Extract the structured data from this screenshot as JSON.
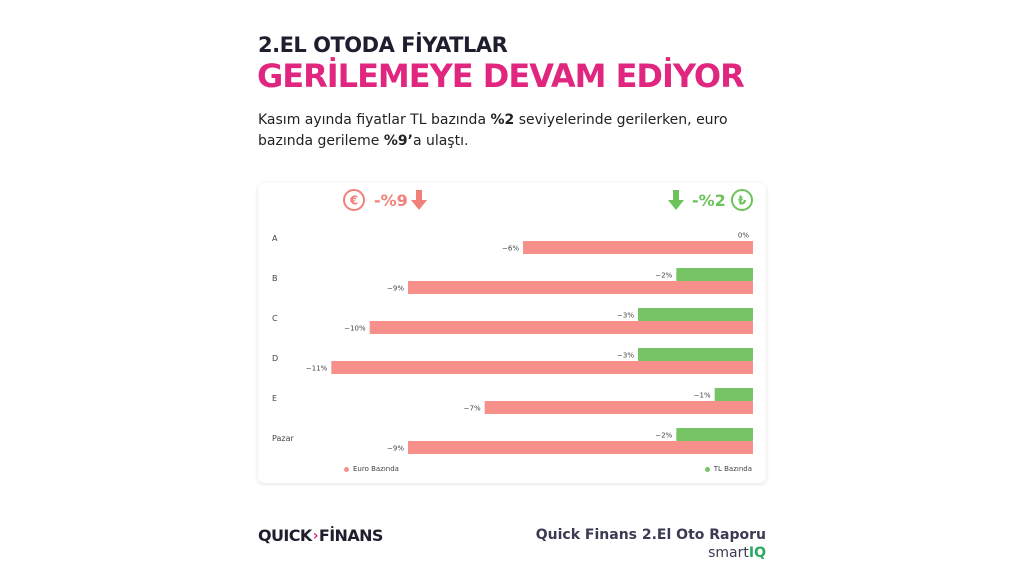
{
  "header": {
    "line1": "2.EL OTODA FİYATLAR",
    "line2": "GERİLEMEYE DEVAM EDİYOR",
    "sub_part1": "Kasım ayında fiyatlar TL bazında ",
    "sub_bold1": "%2",
    "sub_part2": " seviyelerinde gerilerken, euro bazında gerileme ",
    "sub_bold2": "%9’",
    "sub_part3": "a ulaştı."
  },
  "indicators": {
    "euro": {
      "symbol": "€",
      "value": "-%9",
      "color": "#f0807a",
      "icon": "arrow-down-icon"
    },
    "tl": {
      "symbol": "₺",
      "value": "-%2",
      "color": "#6cc35c",
      "icon": "arrow-down-icon"
    }
  },
  "chart_data": {
    "type": "bar",
    "orientation": "horizontal",
    "categories": [
      "A",
      "B",
      "C",
      "D",
      "E",
      "Pazar"
    ],
    "series": [
      {
        "name": "TL Bazında",
        "values": [
          0,
          -2,
          -3,
          -3,
          -1,
          -2
        ],
        "labels": [
          "0%",
          "−2%",
          "−3%",
          "−3%",
          "−1%",
          "−2%"
        ],
        "color": "#76c465"
      },
      {
        "name": "Euro Bazında",
        "values": [
          -6,
          -9,
          -10,
          -11,
          -7,
          -9
        ],
        "labels": [
          "−6%",
          "−9%",
          "−10%",
          "−11%",
          "−7%",
          "−9%"
        ],
        "color": "#f78f8b"
      }
    ],
    "xlim": [
      -12,
      0
    ],
    "legend": "bottom"
  },
  "footer": {
    "logo_left": "QUICK",
    "logo_chevron": "›",
    "logo_right": "FİNANS",
    "report": "Quick Finans 2.El Oto Raporu",
    "brand_main": "smart",
    "brand_accent": "IQ"
  }
}
